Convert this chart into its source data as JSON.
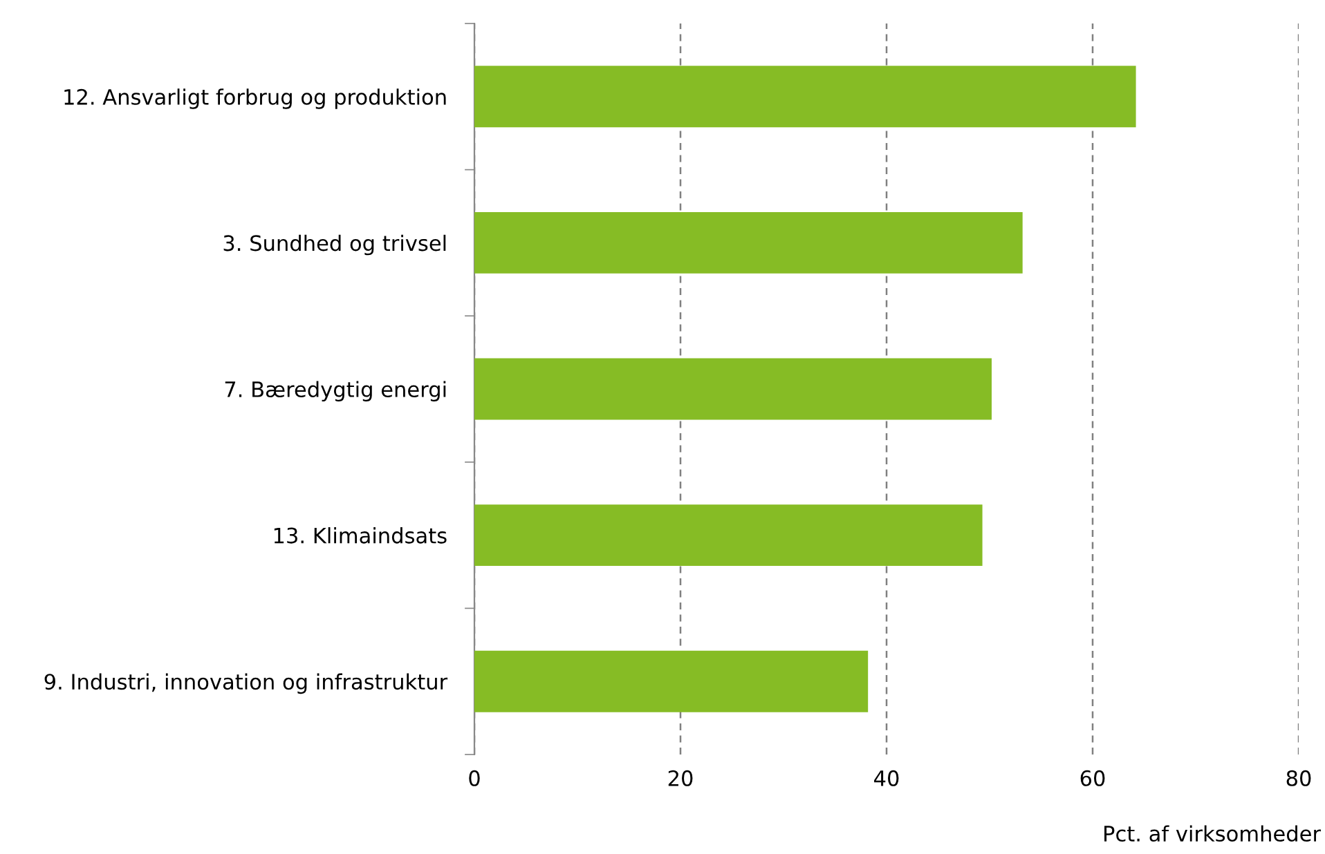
{
  "chart_data": {
    "type": "bar",
    "orientation": "horizontal",
    "categories": [
      "12. Ansvarligt forbrug og produktion",
      "3. Sundhed og trivsel",
      "7. Bæredygtig energi",
      "13. Klimaindsats",
      "9. Industri, innovation og infrastruktur"
    ],
    "values": [
      64.2,
      53.2,
      50.2,
      49.3,
      38.2
    ],
    "color": "#86bc25",
    "xlim": [
      0,
      80
    ],
    "xticks": [
      0,
      20,
      40,
      60,
      80
    ],
    "xlabel": "Pct. af virksomheder",
    "grid": "x",
    "legend": false
  }
}
